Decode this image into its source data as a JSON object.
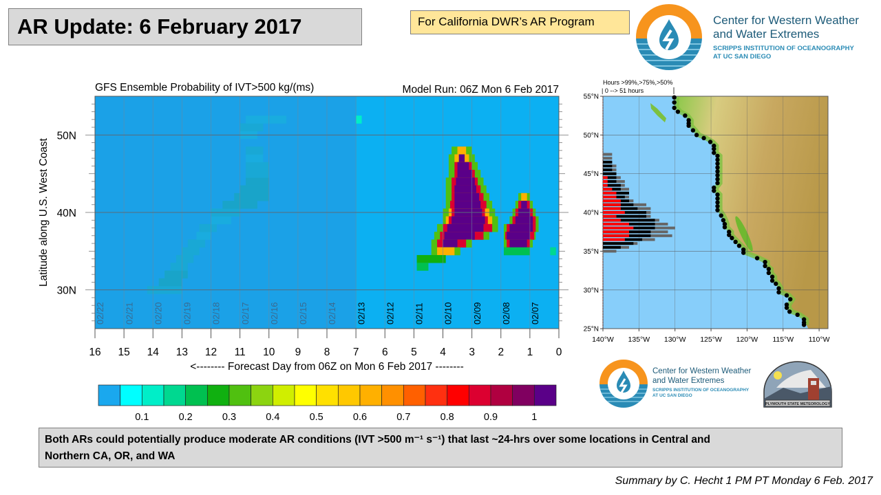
{
  "slide": {
    "title": "AR Update: 6 February 2017",
    "program_label": "For California DWR’s AR Program",
    "summary_line1": "Both ARs could potentially produce moderate AR conditions (IVT >500 m⁻¹ s⁻¹) that last ~24-hrs over some locations in Central and",
    "summary_line2": "Northern CA, OR, and WA",
    "credit": "Summary by C. Hecht 1 PM PT Monday 6 Feb. 2017"
  },
  "logo_top": {
    "line1": "Center for Western Weather",
    "line2": "and Water Extremes",
    "line3": "SCRIPPS INSTITUTION OF OCEANOGRAPHY",
    "line4": "AT UC SAN DIEGO"
  },
  "logo_bottom": {
    "line1": "Center for Western Weather",
    "line2": "and Water Extremes",
    "line3": "SCRIPPS INSTITUTION OF OCEANOGRAPHY",
    "line4": "AT UC SAN DIEGO",
    "plymouth": "PLYMOUTH STATE METEOROLOGY"
  },
  "colors": {
    "accent_orange": "#f7941d",
    "logo_blue": "#2a8bb5",
    "logo_text": "#1c5a78",
    "ocean": "#87cefa",
    "plot_bg_near": "#0cb0f2",
    "plot_bg_far": "#1f9de4"
  },
  "chart_data": [
    {
      "type": "heatmap",
      "title": "GFS Ensemble Probability of IVT>500 kg/(ms)",
      "subtitle": "Model Run: 06Z Mon 6 Feb 2017",
      "xlabel": "<-------- Forecast Day from 06Z on Mon 6 Feb 2017 --------",
      "ylabel": "Latitude along U.S. West Coast",
      "xlim": [
        16,
        0
      ],
      "ylim": [
        25,
        55
      ],
      "x_ticks": [
        "16",
        "15",
        "14",
        "13",
        "12",
        "11",
        "10",
        "9",
        "8",
        "7",
        "6",
        "5",
        "4",
        "3",
        "2",
        "1",
        "0"
      ],
      "y_ticks": [
        {
          "value": 30,
          "label": "30N"
        },
        {
          "value": 40,
          "label": "40N"
        },
        {
          "value": 50,
          "label": "50N"
        }
      ],
      "date_labels": [
        "02/07",
        "02/08",
        "02/09",
        "02/10",
        "02/11",
        "02/12",
        "02/13",
        "02/14",
        "02/15",
        "02/16",
        "02/17",
        "02/18",
        "02/19",
        "02/20",
        "02/21",
        "02/22"
      ],
      "faded_beyond_day": 7,
      "colorbar": {
        "colors": [
          "#1aa8ee",
          "#00ffff",
          "#00eec8",
          "#00d890",
          "#00c050",
          "#10b010",
          "#50c010",
          "#8cd410",
          "#d0ee00",
          "#ffff00",
          "#ffe000",
          "#ffc800",
          "#ffb000",
          "#ff9000",
          "#ff6000",
          "#ff3010",
          "#ff0000",
          "#dc0030",
          "#b00040",
          "#800060",
          "#5a0088"
        ],
        "step": 0.05,
        "labels": [
          "0.1",
          "0.2",
          "0.3",
          "0.4",
          "0.5",
          "0.6",
          "0.7",
          "0.8",
          "0.9",
          "1"
        ]
      },
      "cells_note": "rows: [latitude, day_start, day_end, probability]",
      "cells": [
        [
          48,
          3.0,
          3.7,
          0.3
        ],
        [
          48,
          3.2,
          3.5,
          0.6
        ],
        [
          47,
          2.9,
          3.8,
          0.3
        ],
        [
          47,
          3.1,
          3.6,
          0.6
        ],
        [
          47,
          3.25,
          3.45,
          1
        ],
        [
          46,
          2.8,
          3.8,
          0.3
        ],
        [
          46,
          3.0,
          3.6,
          0.85
        ],
        [
          46,
          3.1,
          3.5,
          1
        ],
        [
          45,
          2.7,
          3.8,
          0.3
        ],
        [
          45,
          2.9,
          3.6,
          0.85
        ],
        [
          45,
          3.0,
          3.5,
          1
        ],
        [
          44,
          2.6,
          3.9,
          0.3
        ],
        [
          44,
          2.8,
          3.7,
          0.85
        ],
        [
          44,
          2.9,
          3.55,
          1
        ],
        [
          43,
          2.5,
          3.9,
          0.3
        ],
        [
          43,
          2.7,
          3.7,
          0.85
        ],
        [
          43,
          2.85,
          3.6,
          1
        ],
        [
          42,
          2.4,
          3.9,
          0.3
        ],
        [
          42,
          2.6,
          3.7,
          0.85
        ],
        [
          42,
          2.75,
          3.6,
          1
        ],
        [
          41,
          2.3,
          3.9,
          0.3
        ],
        [
          41,
          2.5,
          3.75,
          0.85
        ],
        [
          41,
          2.7,
          3.6,
          1
        ],
        [
          40,
          2.2,
          4.0,
          0.3
        ],
        [
          40,
          2.4,
          3.8,
          0.6
        ],
        [
          40,
          2.55,
          3.7,
          0.85
        ],
        [
          40,
          2.65,
          3.6,
          1
        ],
        [
          39,
          2.1,
          4.0,
          0.3
        ],
        [
          39,
          2.3,
          3.9,
          0.6
        ],
        [
          39,
          2.45,
          3.8,
          0.85
        ],
        [
          39,
          2.55,
          3.7,
          1
        ],
        [
          38,
          2.1,
          4.2,
          0.3
        ],
        [
          38,
          2.3,
          4.0,
          0.85
        ],
        [
          38,
          2.6,
          3.85,
          1
        ],
        [
          37,
          2.4,
          4.3,
          0.3
        ],
        [
          37,
          2.6,
          4.1,
          0.85
        ],
        [
          37,
          2.9,
          3.95,
          1
        ],
        [
          36,
          3.0,
          4.4,
          0.3
        ],
        [
          36,
          3.2,
          4.2,
          0.85
        ],
        [
          36,
          3.5,
          4.0,
          1
        ],
        [
          35,
          3.4,
          4.4,
          0.3
        ],
        [
          35,
          3.6,
          4.2,
          0.6
        ],
        [
          34,
          3.9,
          4.9,
          0.25
        ],
        [
          33,
          4.5,
          4.9,
          0.2
        ],
        [
          42,
          1.0,
          1.4,
          0.3
        ],
        [
          42,
          1.1,
          1.3,
          0.6
        ],
        [
          41,
          0.9,
          1.5,
          0.3
        ],
        [
          41,
          1.0,
          1.4,
          0.85
        ],
        [
          41,
          1.1,
          1.3,
          1
        ],
        [
          40,
          0.8,
          1.6,
          0.3
        ],
        [
          40,
          0.9,
          1.5,
          0.85
        ],
        [
          40,
          1.0,
          1.4,
          1
        ],
        [
          39,
          0.7,
          1.7,
          0.3
        ],
        [
          39,
          0.8,
          1.6,
          0.85
        ],
        [
          39,
          0.9,
          1.5,
          1
        ],
        [
          38,
          0.7,
          1.9,
          0.3
        ],
        [
          38,
          0.8,
          1.8,
          0.85
        ],
        [
          38,
          0.9,
          1.7,
          1
        ],
        [
          37,
          0.8,
          1.9,
          0.3
        ],
        [
          37,
          0.85,
          1.85,
          0.85
        ],
        [
          37,
          1.0,
          1.8,
          1
        ],
        [
          36,
          0.9,
          1.9,
          0.3
        ],
        [
          36,
          1.0,
          1.8,
          0.85
        ],
        [
          36,
          1.1,
          1.7,
          1
        ],
        [
          35,
          1.0,
          1.9,
          0.2
        ],
        [
          35,
          0.1,
          0.3,
          0.15
        ],
        [
          52,
          6.8,
          7.0,
          0.1
        ],
        [
          30,
          13.0,
          14.2,
          0.15
        ],
        [
          31,
          13.0,
          13.8,
          0.2
        ],
        [
          32,
          12.8,
          13.6,
          0.2
        ],
        [
          33,
          12.8,
          13.4,
          0.15
        ],
        [
          34,
          12.6,
          13.2,
          0.15
        ],
        [
          35,
          12.4,
          13.0,
          0.15
        ],
        [
          36,
          12.2,
          12.8,
          0.15
        ],
        [
          37,
          12.0,
          12.5,
          0.1
        ],
        [
          38,
          11.8,
          12.4,
          0.15
        ],
        [
          39,
          11.3,
          12.0,
          0.1
        ],
        [
          40,
          11.0,
          12.0,
          0.15
        ],
        [
          41,
          10.4,
          11.6,
          0.2
        ],
        [
          42,
          10.0,
          11.2,
          0.2
        ],
        [
          43,
          10.0,
          11.0,
          0.2
        ],
        [
          44,
          10.0,
          10.8,
          0.2
        ],
        [
          45,
          10.0,
          10.8,
          0.15
        ],
        [
          46,
          10.0,
          10.8,
          0.15
        ],
        [
          47,
          10.2,
          10.8,
          0.1
        ],
        [
          48,
          10.2,
          10.8,
          0.15
        ],
        [
          50,
          10.4,
          11.0,
          0.1
        ],
        [
          51,
          10.2,
          11.0,
          0.15
        ],
        [
          52,
          9.4,
          10.8,
          0.1
        ]
      ]
    },
    {
      "type": "bar",
      "title": "Hours >99%,>75%,>50%",
      "subtitle": "| 0 --> 51 hours",
      "hours_max": 51,
      "lon_ticks": [
        "140°W",
        "135°W",
        "130°W",
        "125°W",
        "120°W",
        "115°W",
        "110°W"
      ],
      "lat_ticks": [
        "55°N",
        "50°N",
        "45°N",
        "40°N",
        "35°N",
        "30°N",
        "25°N"
      ],
      "series_names": [
        ">99%",
        ">75%",
        ">50%"
      ],
      "series_colors": [
        "#ff0000",
        "#000000",
        "#666666"
      ],
      "rows_note": "[latitude, hours>99%, hours>75%, hours>50%]",
      "rows": [
        [
          47.5,
          0,
          0,
          6.5
        ],
        [
          47.0,
          0,
          0,
          6.5
        ],
        [
          46.5,
          0,
          6.5,
          6.5
        ],
        [
          46.0,
          0,
          6.5,
          9.5
        ],
        [
          45.5,
          0,
          6.5,
          9.5
        ],
        [
          45.0,
          0,
          9.5,
          9.5
        ],
        [
          44.5,
          3.3,
          9.5,
          12.6
        ],
        [
          44.0,
          3.3,
          9.5,
          15.5
        ],
        [
          43.5,
          3.3,
          12.6,
          15.5
        ],
        [
          43.0,
          6.5,
          12.6,
          18.5
        ],
        [
          42.5,
          9.5,
          18.5,
          18.5
        ],
        [
          42.0,
          9.5,
          15.5,
          18.5
        ],
        [
          41.5,
          12.6,
          18.5,
          21.6
        ],
        [
          41.0,
          12.6,
          21.6,
          30.7
        ],
        [
          40.5,
          12.6,
          24.5,
          33.8
        ],
        [
          40.0,
          15.5,
          30.7,
          33.8
        ],
        [
          39.5,
          9.5,
          30.7,
          33.8
        ],
        [
          39.0,
          12.6,
          36.8,
          39.9
        ],
        [
          38.5,
          18.5,
          36.8,
          46
        ],
        [
          38.0,
          21.6,
          36.8,
          51
        ],
        [
          37.5,
          18.5,
          33.8,
          46
        ],
        [
          37.0,
          18.5,
          33.8,
          49
        ],
        [
          36.5,
          15.5,
          27.8,
          36.8
        ],
        [
          36.0,
          0,
          21.6,
          24.5
        ],
        [
          35.5,
          0,
          12.6,
          18.5
        ],
        [
          35.0,
          0,
          0,
          9.5
        ]
      ],
      "coast_points_note": "[lon, lat] of coastal sample points",
      "coast_points": [
        [
          -130.1,
          54.85
        ],
        [
          -130.1,
          54.2
        ],
        [
          -130.1,
          53.5
        ],
        [
          -129.6,
          53.0
        ],
        [
          -128.6,
          52.5
        ],
        [
          -128.1,
          51.9
        ],
        [
          -128.1,
          51.5
        ],
        [
          -128.1,
          51.2
        ],
        [
          -127.5,
          50.6
        ],
        [
          -127.0,
          50.0
        ],
        [
          -126.0,
          49.6
        ],
        [
          -125.1,
          49.1
        ],
        [
          -124.6,
          48.6
        ],
        [
          -124.6,
          48.2
        ],
        [
          -124.6,
          47.7
        ],
        [
          -124.1,
          47.3
        ],
        [
          -124.1,
          46.8
        ],
        [
          -124.1,
          46.3
        ],
        [
          -124.1,
          45.8
        ],
        [
          -124.1,
          45.3
        ],
        [
          -124.1,
          44.8
        ],
        [
          -124.1,
          44.3
        ],
        [
          -124.1,
          43.8
        ],
        [
          -124.6,
          43.2
        ],
        [
          -124.6,
          42.8
        ],
        [
          -124.1,
          42.3
        ],
        [
          -124.1,
          41.8
        ],
        [
          -124.1,
          41.3
        ],
        [
          -124.1,
          40.8
        ],
        [
          -124.1,
          40.3
        ],
        [
          -123.6,
          39.6
        ],
        [
          -123.3,
          39.0
        ],
        [
          -123.1,
          38.5
        ],
        [
          -123.1,
          38.1
        ],
        [
          -122.5,
          37.5
        ],
        [
          -122.5,
          37.1
        ],
        [
          -122.1,
          36.7
        ],
        [
          -121.6,
          36.2
        ],
        [
          -121.1,
          35.7
        ],
        [
          -120.5,
          35.2
        ],
        [
          -120.5,
          34.8
        ],
        [
          -118.6,
          34.1
        ],
        [
          -117.5,
          33.6
        ],
        [
          -117.5,
          33.1
        ],
        [
          -117.0,
          32.7
        ],
        [
          -117.0,
          32.2
        ],
        [
          -116.5,
          31.7
        ],
        [
          -116.5,
          31.2
        ],
        [
          -116.0,
          30.8
        ],
        [
          -115.6,
          30.2
        ],
        [
          -115.6,
          29.7
        ],
        [
          -114.5,
          29.3
        ],
        [
          -114.0,
          28.8
        ],
        [
          -114.5,
          28.1
        ],
        [
          -114.5,
          27.7
        ],
        [
          -114.1,
          27.2
        ],
        [
          -113.0,
          26.8
        ],
        [
          -112.1,
          26.2
        ],
        [
          -112.1,
          25.8
        ],
        [
          -112.1,
          25.5
        ]
      ]
    }
  ]
}
